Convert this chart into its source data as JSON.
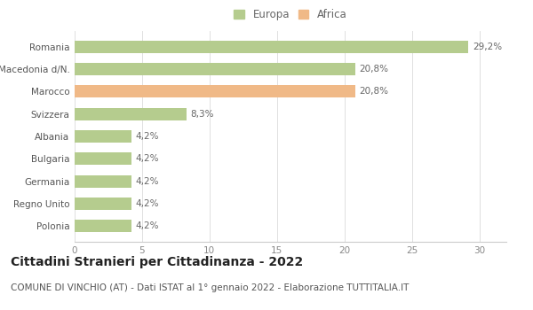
{
  "categories": [
    "Polonia",
    "Regno Unito",
    "Germania",
    "Bulgaria",
    "Albania",
    "Svizzera",
    "Marocco",
    "Macedonia d/N.",
    "Romania"
  ],
  "values": [
    4.2,
    4.2,
    4.2,
    4.2,
    4.2,
    8.3,
    20.8,
    20.8,
    29.2
  ],
  "labels": [
    "4,2%",
    "4,2%",
    "4,2%",
    "4,2%",
    "4,2%",
    "8,3%",
    "20,8%",
    "20,8%",
    "29,2%"
  ],
  "colors": [
    "#b5cc8e",
    "#b5cc8e",
    "#b5cc8e",
    "#b5cc8e",
    "#b5cc8e",
    "#b5cc8e",
    "#f0b987",
    "#b5cc8e",
    "#b5cc8e"
  ],
  "legend_labels": [
    "Europa",
    "Africa"
  ],
  "legend_colors": [
    "#b5cc8e",
    "#f0b987"
  ],
  "title": "Cittadini Stranieri per Cittadinanza - 2022",
  "subtitle": "COMUNE DI VINCHIO (AT) - Dati ISTAT al 1° gennaio 2022 - Elaborazione TUTTITALIA.IT",
  "xlim": [
    0,
    32
  ],
  "xticks": [
    0,
    5,
    10,
    15,
    20,
    25,
    30
  ],
  "bg_color": "#ffffff",
  "bar_height": 0.55,
  "title_fontsize": 10,
  "subtitle_fontsize": 7.5,
  "label_fontsize": 7.5,
  "tick_fontsize": 7.5,
  "legend_fontsize": 8.5
}
